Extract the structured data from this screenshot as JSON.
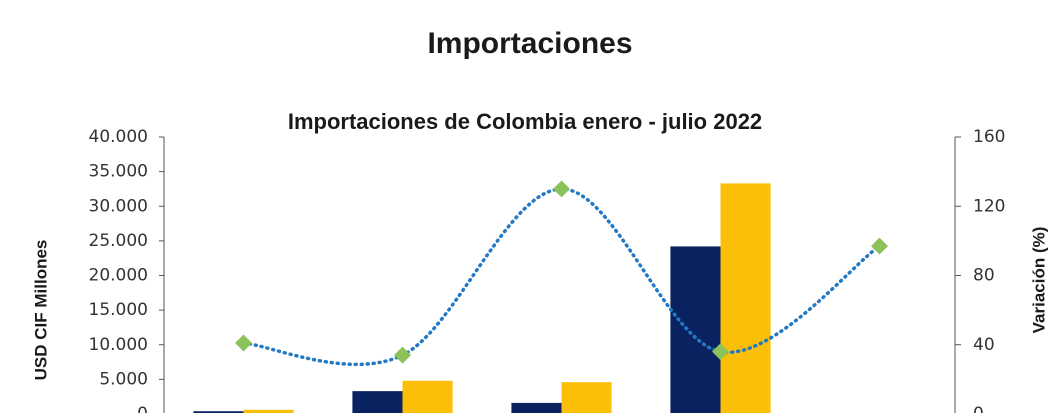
{
  "header": {
    "title": "Importaciones"
  },
  "chart_data": {
    "type": "bar",
    "title": "Importaciones de Colombia enero - julio 2022",
    "y_label": "USD CIF Millones",
    "y2_label": "Variación (%)",
    "categories": [
      null,
      null,
      null,
      null,
      null
    ],
    "series": [
      {
        "color": "#0b2260",
        "values": [
          400,
          3300,
          1600,
          24200,
          null
        ]
      },
      {
        "color": "#fbbf0a",
        "values": [
          600,
          4800,
          4600,
          33300,
          null
        ]
      },
      {
        "type": "line",
        "axis": "y2",
        "color": "#2479c4",
        "marker_color": "#8cc25a",
        "values": [
          41,
          34,
          130,
          36,
          97
        ]
      }
    ],
    "ylim": [
      0,
      40000
    ],
    "yticks": [
      0,
      {
        "value": 5000,
        "label": "5.000"
      },
      {
        "value": 10000,
        "label": "10.000"
      },
      {
        "value": 15000,
        "label": "15.000"
      },
      {
        "value": 20000,
        "label": "20.000"
      },
      {
        "value": 25000,
        "label": "25.000"
      },
      {
        "value": 30000,
        "label": "30.000"
      },
      {
        "value": 35000,
        "label": "35.000"
      },
      {
        "value": 40000,
        "label": "40.000"
      }
    ],
    "y2lim": [
      0,
      160
    ],
    "y2ticks": [
      0,
      40,
      80,
      120,
      160
    ]
  }
}
